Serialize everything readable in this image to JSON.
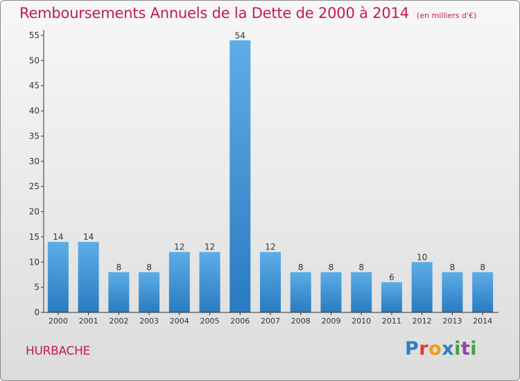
{
  "header": {
    "title": "Remboursements Annuels de la Dette de 2000 à 2014",
    "subtitle": "(en milliers d'€)"
  },
  "footer": {
    "commune": "HURBACHE",
    "brand": "Proxiti"
  },
  "colors": {
    "title": "#c2185b",
    "bar_top": "#5dade8",
    "bar_bottom": "#2a7bbf",
    "axis": "#333333"
  },
  "chart_data": {
    "type": "bar",
    "title": "Remboursements Annuels de la Dette de 2000 à 2014",
    "subtitle": "(en milliers d'€)",
    "categories": [
      "2000",
      "2001",
      "2002",
      "2003",
      "2004",
      "2005",
      "2006",
      "2007",
      "2008",
      "2009",
      "2010",
      "2011",
      "2012",
      "2013",
      "2014"
    ],
    "values": [
      14,
      14,
      8,
      8,
      12,
      12,
      54,
      12,
      8,
      8,
      8,
      6,
      10,
      8,
      8
    ],
    "ylim": [
      0,
      55
    ],
    "yticks": [
      0,
      5,
      10,
      15,
      20,
      25,
      30,
      35,
      40,
      45,
      50,
      55
    ],
    "grid": false,
    "data_labels": true
  }
}
